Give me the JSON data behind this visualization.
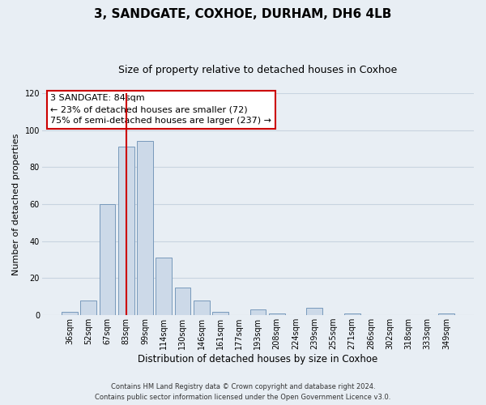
{
  "title_line1": "3, SANDGATE, COXHOE, DURHAM, DH6 4LB",
  "title_line2": "Size of property relative to detached houses in Coxhoe",
  "xlabel": "Distribution of detached houses by size in Coxhoe",
  "ylabel": "Number of detached properties",
  "bar_labels": [
    "36sqm",
    "52sqm",
    "67sqm",
    "83sqm",
    "99sqm",
    "114sqm",
    "130sqm",
    "146sqm",
    "161sqm",
    "177sqm",
    "193sqm",
    "208sqm",
    "224sqm",
    "239sqm",
    "255sqm",
    "271sqm",
    "286sqm",
    "302sqm",
    "318sqm",
    "333sqm",
    "349sqm"
  ],
  "bar_values": [
    2,
    8,
    60,
    91,
    94,
    31,
    15,
    8,
    2,
    0,
    3,
    1,
    0,
    4,
    0,
    1,
    0,
    0,
    0,
    0,
    1
  ],
  "bar_color": "#ccd9e8",
  "bar_edge_color": "#7799bb",
  "vline_x": 3,
  "vline_color": "#cc0000",
  "ylim": [
    0,
    120
  ],
  "yticks": [
    0,
    20,
    40,
    60,
    80,
    100,
    120
  ],
  "annotation_title": "3 SANDGATE: 84sqm",
  "annotation_line1": "← 23% of detached houses are smaller (72)",
  "annotation_line2": "75% of semi-detached houses are larger (237) →",
  "annotation_box_color": "#ffffff",
  "annotation_box_edge": "#cc0000",
  "footer_line1": "Contains HM Land Registry data © Crown copyright and database right 2024.",
  "footer_line2": "Contains public sector information licensed under the Open Government Licence v3.0.",
  "background_color": "#e8eef4",
  "grid_color": "#c8d4e0",
  "title_fontsize": 11,
  "subtitle_fontsize": 9,
  "ylabel_fontsize": 8,
  "xlabel_fontsize": 8.5,
  "tick_fontsize": 7,
  "footer_fontsize": 6,
  "annot_fontsize": 8
}
